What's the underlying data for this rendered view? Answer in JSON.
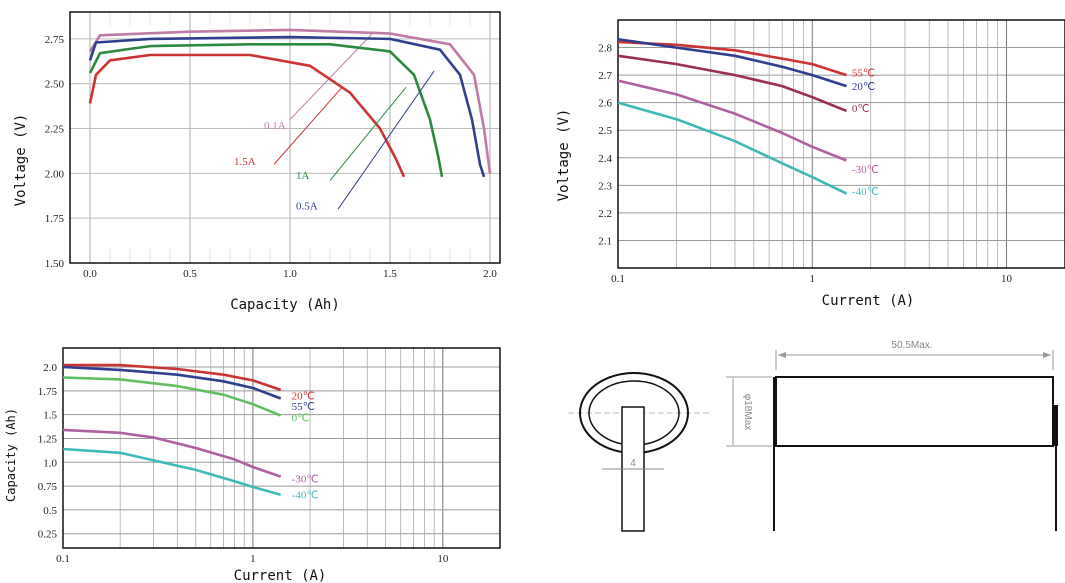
{
  "chart_data": [
    {
      "type": "line",
      "xlabel": "Capacity   (Ah)",
      "ylabel": "Voltage  (V)",
      "xlim": [
        -0.1,
        2.05
      ],
      "ylim": [
        1.5,
        2.9
      ],
      "xticks": [
        "0.0",
        "0.5",
        "1.0",
        "1.5",
        "2.0"
      ],
      "yticks": [
        "1.50",
        "1.75",
        "2.00",
        "2.25",
        "2.50",
        "2.75"
      ],
      "series": [
        {
          "name": "0.1A",
          "color": "#c07aa6",
          "label_pos": [
            0.87,
            2.27
          ],
          "leader": [
            [
              1.0,
              2.3
            ],
            [
              1.42,
              2.79
            ]
          ],
          "points": [
            [
              0.0,
              2.68
            ],
            [
              0.05,
              2.77
            ],
            [
              0.5,
              2.79
            ],
            [
              1.0,
              2.8
            ],
            [
              1.5,
              2.78
            ],
            [
              1.8,
              2.72
            ],
            [
              1.92,
              2.55
            ],
            [
              1.97,
              2.25
            ],
            [
              2.0,
              2.0
            ]
          ]
        },
        {
          "name": "1.5A",
          "color": "#cc3333",
          "label_pos": [
            0.72,
            2.07
          ],
          "leader": [
            [
              0.92,
              2.05
            ],
            [
              1.26,
              2.48
            ]
          ],
          "points": [
            [
              0.0,
              2.39
            ],
            [
              0.03,
              2.55
            ],
            [
              0.1,
              2.63
            ],
            [
              0.3,
              2.66
            ],
            [
              0.8,
              2.66
            ],
            [
              1.1,
              2.6
            ],
            [
              1.3,
              2.45
            ],
            [
              1.45,
              2.25
            ],
            [
              1.53,
              2.08
            ],
            [
              1.57,
              1.98
            ]
          ]
        },
        {
          "name": "1A",
          "color": "#2b8a3e",
          "label_pos": [
            1.03,
            1.99
          ],
          "leader": [
            [
              1.2,
              1.96
            ],
            [
              1.58,
              2.48
            ]
          ],
          "points": [
            [
              0.0,
              2.56
            ],
            [
              0.05,
              2.67
            ],
            [
              0.3,
              2.71
            ],
            [
              0.8,
              2.72
            ],
            [
              1.2,
              2.72
            ],
            [
              1.5,
              2.68
            ],
            [
              1.62,
              2.55
            ],
            [
              1.7,
              2.3
            ],
            [
              1.74,
              2.1
            ],
            [
              1.76,
              1.98
            ]
          ]
        },
        {
          "name": "0.5A",
          "color": "#2f3f8f",
          "label_pos": [
            1.03,
            1.82
          ],
          "leader": [
            [
              1.24,
              1.8
            ],
            [
              1.72,
              2.57
            ]
          ],
          "points": [
            [
              0.0,
              2.63
            ],
            [
              0.03,
              2.73
            ],
            [
              0.3,
              2.75
            ],
            [
              1.0,
              2.76
            ],
            [
              1.5,
              2.75
            ],
            [
              1.75,
              2.69
            ],
            [
              1.85,
              2.55
            ],
            [
              1.91,
              2.3
            ],
            [
              1.95,
              2.05
            ],
            [
              1.97,
              1.98
            ]
          ]
        }
      ]
    },
    {
      "type": "line",
      "xscale": "log",
      "xlabel": "Current (A)",
      "ylabel": "Voltage (V)",
      "xlim": [
        0.1,
        20
      ],
      "ylim": [
        2.0,
        2.9
      ],
      "xticks": [
        "0.1",
        "1",
        "10"
      ],
      "yticks": [
        "2.1",
        "2.2",
        "2.3",
        "2.4",
        "2.5",
        "2.6",
        "2.7",
        "2.8"
      ],
      "series": [
        {
          "name": "55℃",
          "color": "#cc3333",
          "label_pos": [
            1.6,
            2.71
          ],
          "points": [
            [
              0.1,
              2.82
            ],
            [
              0.2,
              2.81
            ],
            [
              0.4,
              2.79
            ],
            [
              0.7,
              2.76
            ],
            [
              1.0,
              2.74
            ],
            [
              1.5,
              2.7
            ]
          ]
        },
        {
          "name": "20℃",
          "color": "#2f3f8f",
          "label_pos": [
            1.6,
            2.66
          ],
          "points": [
            [
              0.1,
              2.83
            ],
            [
              0.2,
              2.8
            ],
            [
              0.4,
              2.77
            ],
            [
              0.7,
              2.73
            ],
            [
              1.0,
              2.7
            ],
            [
              1.5,
              2.66
            ]
          ]
        },
        {
          "name": "0℃",
          "color": "#9b2f4f",
          "label_pos": [
            1.6,
            2.58
          ],
          "points": [
            [
              0.1,
              2.77
            ],
            [
              0.2,
              2.74
            ],
            [
              0.4,
              2.7
            ],
            [
              0.7,
              2.66
            ],
            [
              1.0,
              2.62
            ],
            [
              1.5,
              2.57
            ]
          ]
        },
        {
          "name": "-30℃",
          "color": "#b060a0",
          "label_pos": [
            1.6,
            2.36
          ],
          "points": [
            [
              0.1,
              2.68
            ],
            [
              0.2,
              2.63
            ],
            [
              0.4,
              2.56
            ],
            [
              0.7,
              2.49
            ],
            [
              1.0,
              2.44
            ],
            [
              1.5,
              2.39
            ]
          ]
        },
        {
          "name": "-40℃",
          "color": "#3fb8b8",
          "label_pos": [
            1.6,
            2.28
          ],
          "points": [
            [
              0.1,
              2.6
            ],
            [
              0.2,
              2.54
            ],
            [
              0.4,
              2.46
            ],
            [
              0.7,
              2.38
            ],
            [
              1.0,
              2.33
            ],
            [
              1.5,
              2.27
            ]
          ]
        }
      ]
    },
    {
      "type": "line",
      "xscale": "log",
      "xlabel": "Current (A)",
      "ylabel": "Capacity (Ah)",
      "xlim": [
        0.1,
        20
      ],
      "ylim": [
        0.1,
        2.2
      ],
      "xticks": [
        "0.1",
        "1",
        "10"
      ],
      "yticks": [
        "0.25",
        "0.5",
        "0.75",
        "1.0",
        "1.25",
        "1.5",
        "1.75",
        "2.0"
      ],
      "series": [
        {
          "name": "20℃",
          "color": "#cc3333",
          "label_pos": [
            1.6,
            1.7
          ],
          "points": [
            [
              0.1,
              2.02
            ],
            [
              0.2,
              2.02
            ],
            [
              0.4,
              1.98
            ],
            [
              0.7,
              1.92
            ],
            [
              1.0,
              1.86
            ],
            [
              1.4,
              1.76
            ]
          ]
        },
        {
          "name": "55℃",
          "color": "#2f3f8f",
          "label_pos": [
            1.6,
            1.59
          ],
          "points": [
            [
              0.1,
              2.0
            ],
            [
              0.2,
              1.97
            ],
            [
              0.4,
              1.92
            ],
            [
              0.7,
              1.85
            ],
            [
              1.0,
              1.78
            ],
            [
              1.4,
              1.67
            ]
          ]
        },
        {
          "name": "0℃",
          "color": "#5fbf5f",
          "label_pos": [
            1.6,
            1.47
          ],
          "points": [
            [
              0.1,
              1.89
            ],
            [
              0.2,
              1.87
            ],
            [
              0.4,
              1.8
            ],
            [
              0.7,
              1.71
            ],
            [
              1.0,
              1.61
            ],
            [
              1.4,
              1.49
            ]
          ]
        },
        {
          "name": "-30℃",
          "color": "#b060a0",
          "label_pos": [
            1.6,
            0.83
          ],
          "points": [
            [
              0.1,
              1.34
            ],
            [
              0.2,
              1.31
            ],
            [
              0.3,
              1.26
            ],
            [
              0.5,
              1.15
            ],
            [
              0.8,
              1.03
            ],
            [
              1.0,
              0.95
            ],
            [
              1.4,
              0.85
            ]
          ]
        },
        {
          "name": "-40℃",
          "color": "#3fb8b8",
          "label_pos": [
            1.6,
            0.66
          ],
          "points": [
            [
              0.1,
              1.14
            ],
            [
              0.2,
              1.1
            ],
            [
              0.3,
              1.02
            ],
            [
              0.5,
              0.92
            ],
            [
              0.8,
              0.8
            ],
            [
              1.0,
              0.74
            ],
            [
              1.4,
              0.66
            ]
          ]
        }
      ]
    }
  ],
  "drawing": {
    "length_label": "50.5Max.",
    "diameter_label": "φ18Max",
    "tab_width_label": "4"
  }
}
